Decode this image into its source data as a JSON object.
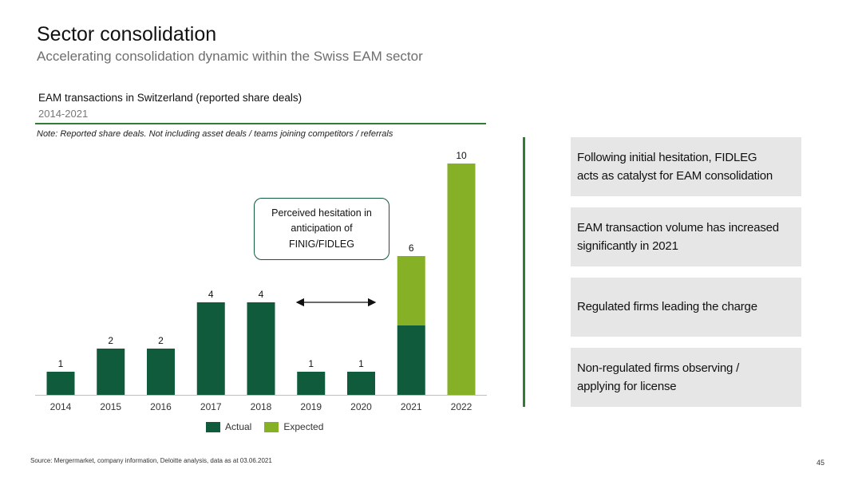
{
  "header": {
    "title": "Sector consolidation",
    "subtitle": "Accelerating consolidation dynamic within the Swiss EAM sector"
  },
  "chart_header": {
    "title": "EAM transactions in Switzerland (reported share deals)",
    "subtitle": "2014-2021",
    "note": "Note: Reported share deals. Not including asset deals / teams joining competitors / referrals"
  },
  "chart_data": {
    "type": "bar",
    "stacked": true,
    "categories": [
      "2014",
      "2015",
      "2016",
      "2017",
      "2018",
      "2019",
      "2020",
      "2021",
      "2022"
    ],
    "series": [
      {
        "name": "Actual",
        "values": [
          1,
          2,
          2,
          4,
          4,
          1,
          1,
          3,
          0
        ],
        "color": "#0f5b3b"
      },
      {
        "name": "Expected",
        "values": [
          0,
          0,
          0,
          0,
          0,
          0,
          0,
          3,
          10
        ],
        "color": "#86b026"
      }
    ],
    "totals": [
      1,
      2,
      2,
      4,
      4,
      1,
      1,
      6,
      10
    ],
    "ylim": [
      0,
      10
    ],
    "grid": false,
    "legend": "bottom-center",
    "annotation": "Perceived hesitation in\nanticipation of\nFINIG/FIDLEG"
  },
  "colors": {
    "actual": "#0f5b3b",
    "expected": "#86b026",
    "accent_rule": "#2e7d32",
    "panel_bg": "#e6e6e6"
  },
  "panel": {
    "boxes": [
      {
        "lines": [
          "Following initial hesitation, FIDLEG",
          "acts as catalyst for EAM consolidation"
        ]
      },
      {
        "lines": [
          "EAM transaction volume has increased",
          "significantly in 2021"
        ]
      },
      {
        "lines": [
          "Regulated firms leading the charge"
        ]
      },
      {
        "lines": [
          "Non-regulated firms observing /",
          "applying for license"
        ]
      }
    ]
  },
  "footer": {
    "source": "Source: Mergermarket, company information, Deloitte analysis, data as at 03.06.2021",
    "page_number": "45"
  }
}
